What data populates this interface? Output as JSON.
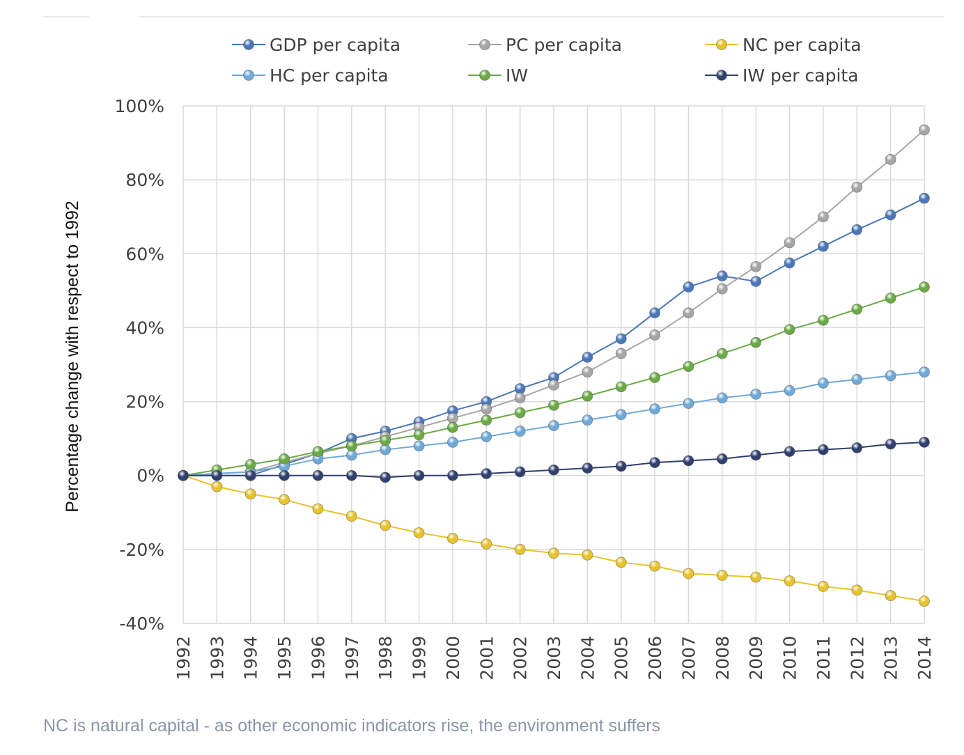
{
  "caption": "NC is natural capital - as other economic indicators rise, the environment suffers",
  "chart_data": {
    "type": "line",
    "title": "",
    "xlabel": "",
    "ylabel": "Percentage change with respect to 1992",
    "ylim": [
      -40,
      100
    ],
    "yticks": [
      "100%",
      "80%",
      "60%",
      "40%",
      "20%",
      "0%",
      "-20%",
      "-40%"
    ],
    "grid": true,
    "legend_position": "top",
    "categories": [
      "1992",
      "1993",
      "1994",
      "1995",
      "1996",
      "1997",
      "1998",
      "1999",
      "2000",
      "2001",
      "2002",
      "2003",
      "2004",
      "2005",
      "2006",
      "2007",
      "2008",
      "2009",
      "2010",
      "2011",
      "2012",
      "2013",
      "2014"
    ],
    "series": [
      {
        "name": "GDP per capita",
        "color": "#4a77b8",
        "values": [
          0,
          0,
          0,
          3,
          6,
          10,
          12,
          14.5,
          17.5,
          20,
          23.5,
          26.5,
          32,
          37,
          44,
          51,
          54,
          52.5,
          57.5,
          62,
          66.5,
          70.5,
          75
        ]
      },
      {
        "name": "PC per capita",
        "color": "#a6a6a6",
        "values": [
          0,
          0.5,
          1,
          3.5,
          6,
          8,
          10.5,
          13,
          15.5,
          18,
          21,
          24.5,
          28,
          33,
          38,
          44,
          50.5,
          56.5,
          63,
          70,
          78,
          85.5,
          93.5
        ]
      },
      {
        "name": "NC per capita",
        "color": "#e8c32c",
        "values": [
          0,
          -3,
          -5,
          -6.5,
          -9,
          -11,
          -13.5,
          -15.5,
          -17,
          -18.5,
          -20,
          -21,
          -21.5,
          -23.5,
          -24.5,
          -26.5,
          -27,
          -27.5,
          -28.5,
          -30,
          -31,
          -32.5,
          -34
        ]
      },
      {
        "name": "HC per capita",
        "color": "#6fa9d8",
        "values": [
          0,
          0.5,
          1,
          2.5,
          4.5,
          5.5,
          7,
          8,
          9,
          10.5,
          12,
          13.5,
          15,
          16.5,
          18,
          19.5,
          21,
          22,
          23,
          25,
          26,
          27,
          28
        ]
      },
      {
        "name": "IW",
        "color": "#6aaa45",
        "values": [
          0,
          1.5,
          3,
          4.5,
          6.5,
          8,
          9.5,
          11,
          13,
          15,
          17,
          19,
          21.5,
          24,
          26.5,
          29.5,
          33,
          36,
          39.5,
          42,
          45,
          48,
          51
        ]
      },
      {
        "name": "IW per capita",
        "color": "#2f3f6e",
        "values": [
          0,
          0,
          0,
          0,
          0,
          0,
          -0.5,
          0,
          0,
          0.5,
          1,
          1.5,
          2,
          2.5,
          3.5,
          4,
          4.5,
          5.5,
          6.5,
          7,
          7.5,
          8.5,
          9
        ]
      }
    ]
  }
}
